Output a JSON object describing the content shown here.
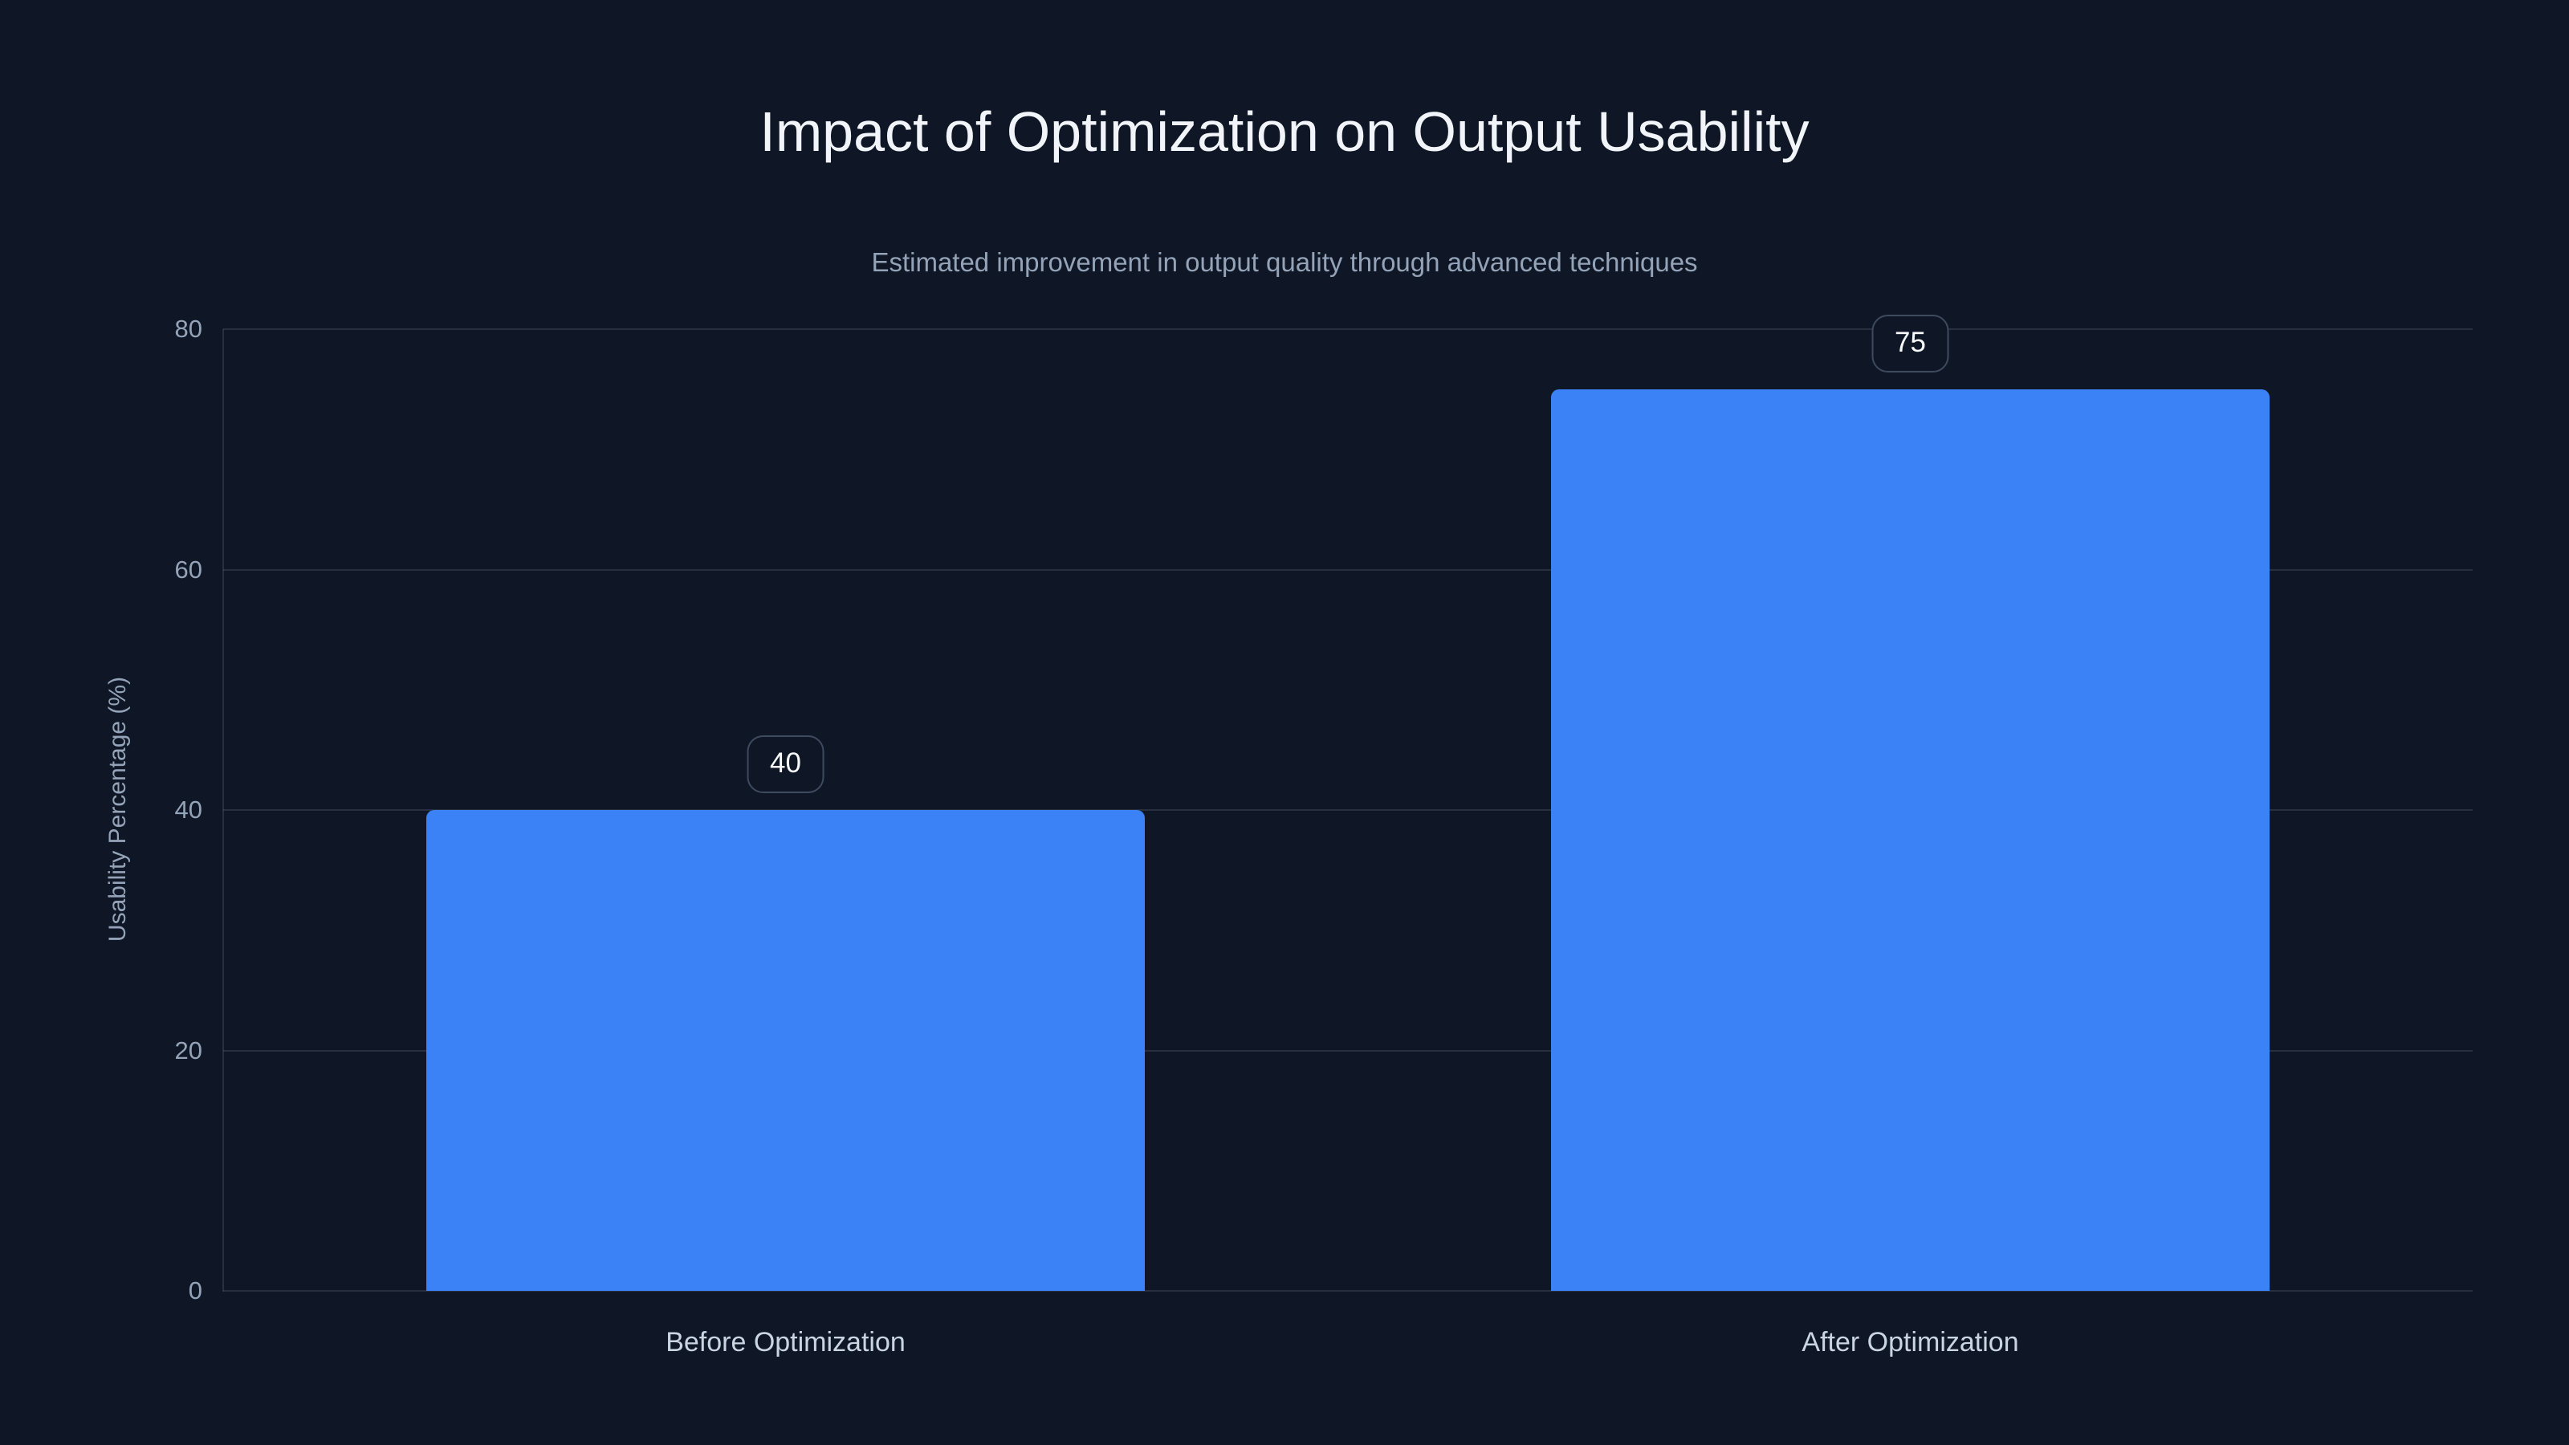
{
  "chart_data": {
    "type": "bar",
    "title": "Impact of Optimization on Output Usability",
    "subtitle": "Estimated improvement in output quality through advanced techniques",
    "categories": [
      "Before Optimization",
      "After Optimization"
    ],
    "values": [
      40,
      75
    ],
    "xlabel": "",
    "ylabel": "Usability Percentage (%)",
    "ylim": [
      0,
      80
    ],
    "yticks": [
      0,
      20,
      40,
      60,
      80
    ],
    "grid": "horizontal",
    "legend_position": "none",
    "colors": {
      "background": "#0f1726",
      "bar": "#3b82f6",
      "title_text": "#f1f5f9",
      "subtitle_text": "#94a3b8",
      "tick_text": "#94a3b8",
      "category_text": "#cbd5e1",
      "gridline": "rgba(148,163,184,0.18)",
      "badge_border": "#3e4a5e",
      "badge_text": "#f8fafc"
    }
  }
}
